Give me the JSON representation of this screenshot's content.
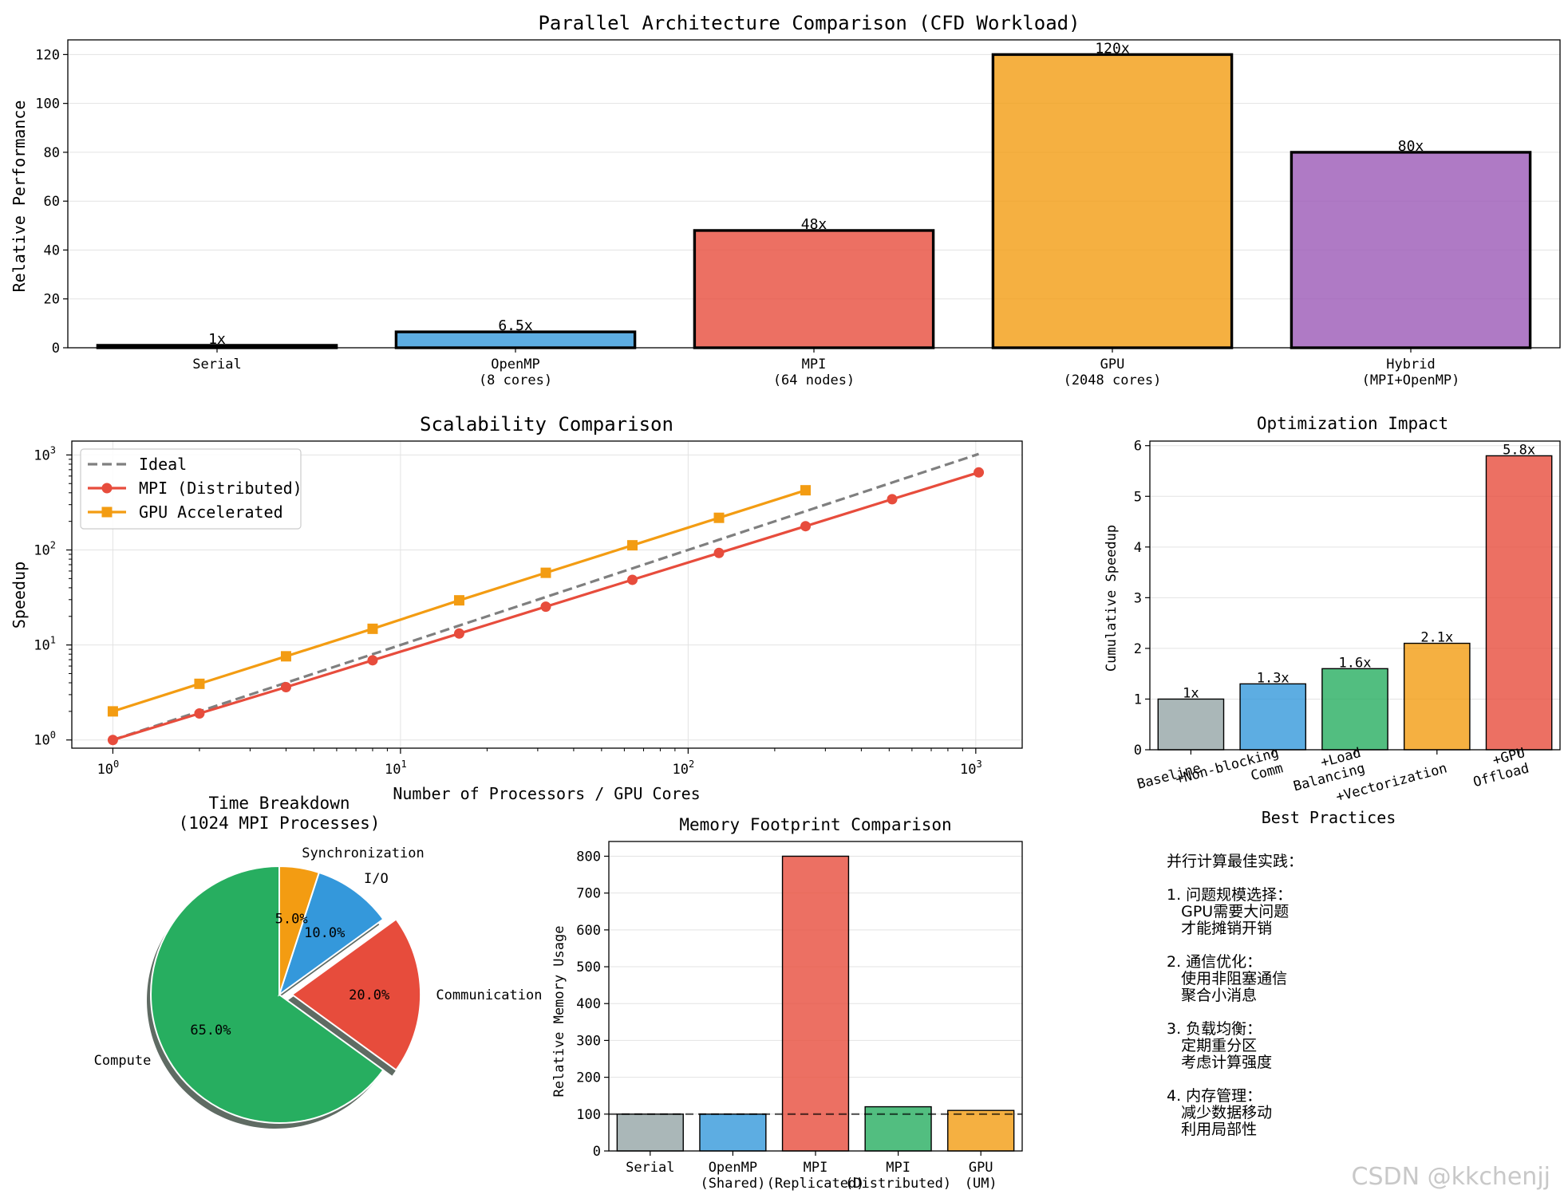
{
  "chart_data": [
    {
      "id": "arch",
      "type": "bar",
      "title": "Parallel Architecture Comparison (CFD Workload)",
      "ylabel": "Relative Performance",
      "categories": [
        "Serial",
        "OpenMP\n(8 cores)",
        "MPI\n(64 nodes)",
        "GPU\n(2048 cores)",
        "Hybrid\n(MPI+OpenMP)"
      ],
      "values": [
        1,
        6.5,
        48,
        120,
        80
      ],
      "data_labels": [
        "1x",
        "6.5x",
        "48x",
        "120x",
        "80x"
      ],
      "colors": [
        "#2c3e50",
        "#3498db",
        "#e74c3c",
        "#f39c12",
        "#9b59b6"
      ],
      "ylim": [
        0,
        126
      ],
      "yticks": [
        0,
        20,
        40,
        60,
        80,
        100,
        120
      ],
      "grid": "y"
    },
    {
      "id": "scal",
      "type": "line",
      "title": "Scalability Comparison",
      "xlabel": "Number of Processors / GPU Cores",
      "ylabel": "Speedup",
      "xscale": "log",
      "yscale": "log",
      "xlim": [
        0.72,
        1450
      ],
      "ylim": [
        0.82,
        1400
      ],
      "legend": "top-left",
      "grid": "both",
      "series": [
        {
          "name": "Ideal",
          "color": "#7f7f7f",
          "style": "dashed",
          "x": [
            1,
            2,
            4,
            8,
            16,
            32,
            64,
            128,
            256,
            512,
            1024
          ],
          "y": [
            1,
            2,
            4,
            8,
            16,
            32,
            64,
            128,
            256,
            512,
            1024
          ]
        },
        {
          "name": "MPI (Distributed)",
          "color": "#e74c3c",
          "marker": "circle",
          "x": [
            1,
            2,
            4,
            8,
            16,
            32,
            64,
            128,
            256,
            512,
            1024
          ],
          "y": [
            1,
            1.9,
            3.6,
            6.9,
            13.2,
            25.3,
            48.5,
            93,
            178,
            342,
            655
          ]
        },
        {
          "name": "GPU Accelerated",
          "color": "#f39c12",
          "marker": "square",
          "x": [
            1,
            2,
            4,
            8,
            16,
            32,
            64,
            128,
            256
          ],
          "y": [
            2,
            3.9,
            7.6,
            14.8,
            29.5,
            57.5,
            112,
            218,
            425
          ]
        }
      ]
    },
    {
      "id": "opt",
      "type": "bar",
      "title": "Optimization Impact",
      "xlabel": "Best Practices",
      "ylabel": "Cumulative Speedup",
      "categories": [
        "Baseline",
        "+Non-blocking\nComm",
        "+Load\nBalancing",
        "+Vectorization",
        "+GPU\nOffload"
      ],
      "values": [
        1,
        1.3,
        1.6,
        2.1,
        5.8
      ],
      "data_labels": [
        "1x",
        "1.3x",
        "1.6x",
        "2.1x",
        "5.8x"
      ],
      "colors": [
        "#95a5a6",
        "#3498db",
        "#27ae60",
        "#f39c12",
        "#e74c3c"
      ],
      "ylim": [
        0,
        6.09
      ],
      "yticks": [
        0,
        1,
        2,
        3,
        4,
        5,
        6
      ],
      "grid": "y"
    },
    {
      "id": "pie",
      "type": "pie",
      "title": "Time Breakdown\n(1024 MPI Processes)",
      "categories": [
        "Compute",
        "Communication",
        "I/O",
        "Synchronization"
      ],
      "values": [
        65,
        20,
        10,
        5
      ],
      "data_labels": [
        "65.0%",
        "20.0%",
        "10.0%",
        "5.0%"
      ],
      "colors": [
        "#27ae60",
        "#e74c3c",
        "#3498db",
        "#f39c12"
      ],
      "explode": [
        0,
        0.1,
        0,
        0
      ],
      "shadow": true
    },
    {
      "id": "mem",
      "type": "bar",
      "title": "Memory Footprint Comparison",
      "ylabel": "Relative Memory Usage",
      "categories": [
        "Serial",
        "OpenMP\n(Shared)",
        "MPI\n(Replicated)",
        "MPI\n(Distributed)",
        "GPU\n(UM)"
      ],
      "values": [
        100,
        100,
        800,
        120,
        110
      ],
      "colors": [
        "#95a5a6",
        "#3498db",
        "#e74c3c",
        "#27ae60",
        "#f39c12"
      ],
      "ylim": [
        0,
        840
      ],
      "yticks": [
        0,
        100,
        200,
        300,
        400,
        500,
        600,
        700,
        800
      ],
      "reference_line": 100,
      "grid": "y"
    }
  ],
  "notes": {
    "heading": "并行计算最佳实践：",
    "groups": [
      {
        "lines": [
          "1. 问题规模选择：",
          "   GPU需要大问题",
          "   才能摊销开销"
        ]
      },
      {
        "lines": [
          "2. 通信优化：",
          "   使用非阻塞通信",
          "   聚合小消息"
        ]
      },
      {
        "lines": [
          "3. 负载均衡：",
          "   定期重分区",
          "   考虑计算强度"
        ]
      },
      {
        "lines": [
          "4. 内存管理：",
          "   减少数据移动",
          "   利用局部性"
        ]
      }
    ]
  },
  "watermark": "CSDN @kkchenjj"
}
